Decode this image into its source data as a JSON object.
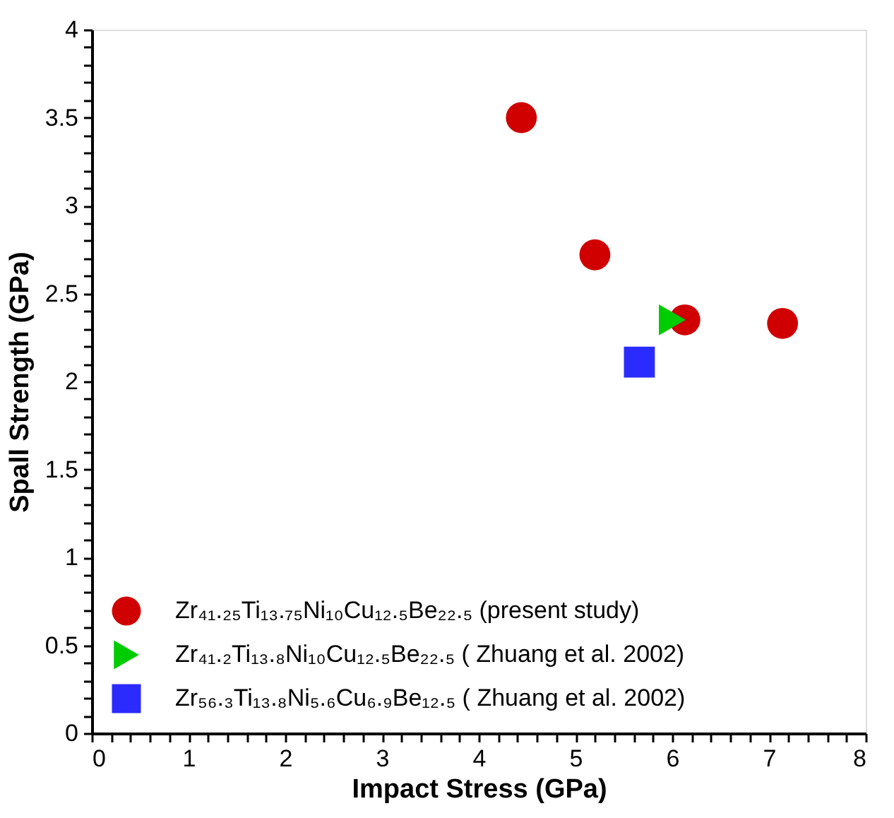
{
  "chart_data": {
    "type": "scatter",
    "xlabel": "Impact Stress (GPa)",
    "ylabel": "Spall Strength (GPa)",
    "xlim": [
      0,
      8
    ],
    "ylim": [
      0,
      4
    ],
    "xticks": [
      0,
      {
        "value": 0.2,
        "label": null
      },
      {
        "value": 0.4,
        "label": null
      },
      {
        "value": 0.6,
        "label": null
      },
      {
        "value": 0.8,
        "label": null
      },
      1,
      {
        "value": 1.2,
        "label": null
      },
      {
        "value": 1.4,
        "label": null
      },
      {
        "value": 1.6,
        "label": null
      },
      {
        "value": 1.8,
        "label": null
      },
      2,
      {
        "value": 2.2,
        "label": null
      },
      {
        "value": 2.4,
        "label": null
      },
      {
        "value": 2.6,
        "label": null
      },
      {
        "value": 2.8,
        "label": null
      },
      3,
      {
        "value": 3.2,
        "label": null
      },
      {
        "value": 3.4,
        "label": null
      },
      {
        "value": 3.6,
        "label": null
      },
      {
        "value": 3.8,
        "label": null
      },
      4,
      {
        "value": 4.2,
        "label": null
      },
      {
        "value": 4.4,
        "label": null
      },
      {
        "value": 4.6,
        "label": null
      },
      {
        "value": 4.8,
        "label": null
      },
      5,
      {
        "value": 5.2,
        "label": null
      },
      {
        "value": 5.4,
        "label": null
      },
      {
        "value": 5.6,
        "label": null
      },
      {
        "value": 5.8,
        "label": null
      },
      6,
      {
        "value": 6.2,
        "label": null
      },
      {
        "value": 6.4,
        "label": null
      },
      {
        "value": 6.6,
        "label": null
      },
      {
        "value": 6.8,
        "label": null
      },
      7,
      {
        "value": 7.2,
        "label": null
      },
      {
        "value": 7.4,
        "label": null
      },
      {
        "value": 7.6,
        "label": null
      },
      {
        "value": 7.8,
        "label": null
      },
      8
    ],
    "yticks": [
      0,
      {
        "value": 0.1,
        "label": null
      },
      {
        "value": 0.2,
        "label": null
      },
      {
        "value": 0.3,
        "label": null
      },
      {
        "value": 0.4,
        "label": null
      },
      0.5,
      {
        "value": 0.6,
        "label": null
      },
      {
        "value": 0.7,
        "label": null
      },
      {
        "value": 0.8,
        "label": null
      },
      {
        "value": 0.9,
        "label": null
      },
      1,
      {
        "value": 1.1,
        "label": null
      },
      {
        "value": 1.2,
        "label": null
      },
      {
        "value": 1.3,
        "label": null
      },
      {
        "value": 1.4,
        "label": null
      },
      1.5,
      {
        "value": 1.6,
        "label": null
      },
      {
        "value": 1.7,
        "label": null
      },
      {
        "value": 1.8,
        "label": null
      },
      {
        "value": 1.9,
        "label": null
      },
      2,
      {
        "value": 2.1,
        "label": null
      },
      {
        "value": 2.2,
        "label": null
      },
      {
        "value": 2.3,
        "label": null
      },
      {
        "value": 2.4,
        "label": null
      },
      2.5,
      {
        "value": 2.6,
        "label": null
      },
      {
        "value": 2.7,
        "label": null
      },
      {
        "value": 2.8,
        "label": null
      },
      {
        "value": 2.9,
        "label": null
      },
      3,
      {
        "value": 3.1,
        "label": null
      },
      {
        "value": 3.2,
        "label": null
      },
      {
        "value": 3.3,
        "label": null
      },
      {
        "value": 3.4,
        "label": null
      },
      3.5,
      {
        "value": 3.6,
        "label": null
      },
      {
        "value": 3.7,
        "label": null
      },
      {
        "value": 3.8,
        "label": null
      },
      {
        "value": 3.9,
        "label": null
      },
      4
    ],
    "grid": false,
    "legend": "bottom left",
    "series": [
      {
        "name": "Zr₄₁.₂₅Ti₁₃.₇₅Ni₁₀Cu₁₂.₅Be₂₂.₅ (present study)",
        "color": "#d00000",
        "marker": "circle",
        "x": [
          4.44,
          5.2,
          6.13,
          7.14
        ],
        "values": [
          3.5,
          2.72,
          2.35,
          2.33
        ]
      },
      {
        "name": "Zr₄₁.₂Ti₁₃.₈Ni₁₀Cu₁₂.₅Be₂₂.₅ ( Zhuang et al. 2002)",
        "color": "#00cc00",
        "marker": "triangle",
        "x": [
          6.0
        ],
        "values": [
          2.35
        ]
      },
      {
        "name": "Zr₅₆.₃Ti₁₃.₈Ni₅.₆Cu₆.₉Be₁₂.₅ ( Zhuang et al. 2002)",
        "color": "#2b2bff",
        "marker": "square",
        "x": [
          5.66
        ],
        "values": [
          2.11
        ]
      }
    ]
  }
}
